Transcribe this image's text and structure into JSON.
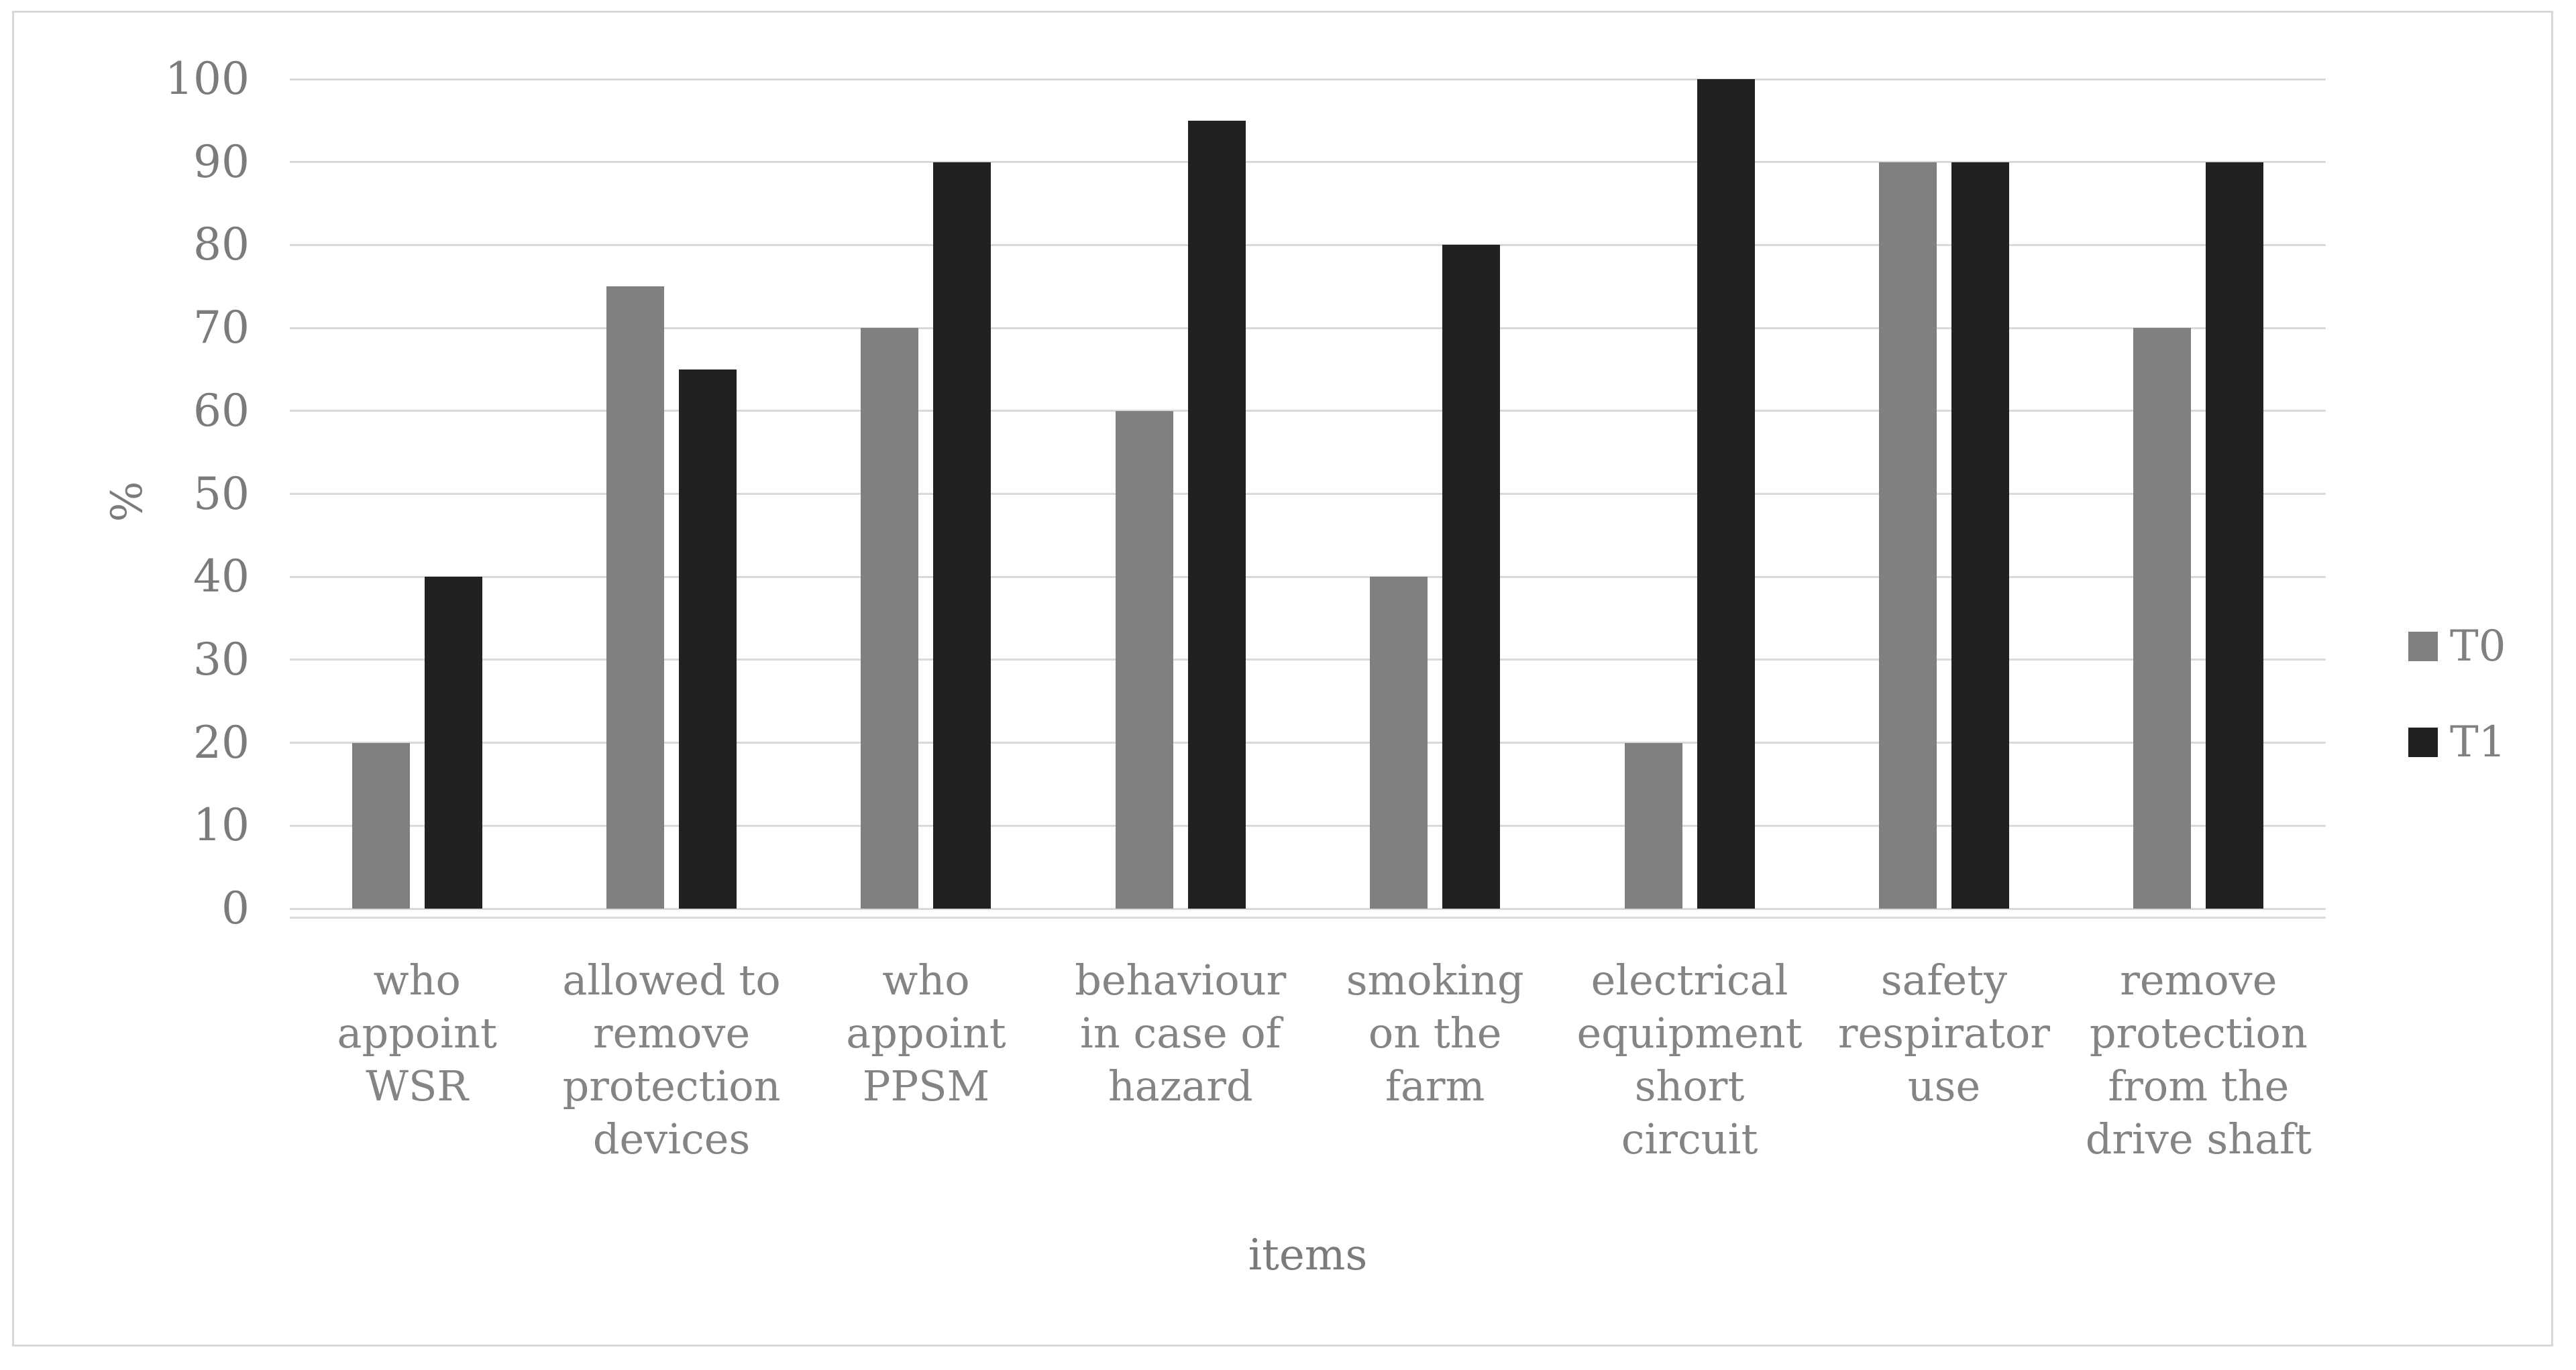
{
  "chart_data": {
    "type": "bar",
    "title": "",
    "categories": [
      "who appoint WSR",
      "allowed to remove protection devices",
      "who appoint PPSM",
      "behaviour in case of hazard",
      "smoking on the farm",
      "electrical equipment short circuit",
      "safety respirator use",
      "remove protection from the drive shaft"
    ],
    "series": [
      {
        "name": "T0",
        "color": "#808080",
        "values": [
          20,
          75,
          70,
          60,
          40,
          20,
          90,
          70
        ]
      },
      {
        "name": "T1",
        "color": "#212121",
        "values": [
          40,
          65,
          90,
          95,
          80,
          100,
          90,
          90
        ]
      }
    ],
    "xlabel": "items",
    "ylabel": "%",
    "ylim": [
      0,
      100
    ],
    "yticks": [
      0,
      10,
      20,
      30,
      40,
      50,
      60,
      70,
      80,
      90,
      100
    ],
    "grid": true,
    "legend_position": "right",
    "colors": {
      "gridline": "#d9d9d9",
      "frame_border": "#d9d9d9",
      "text": "#7b7b7b",
      "background": "#ffffff"
    }
  }
}
